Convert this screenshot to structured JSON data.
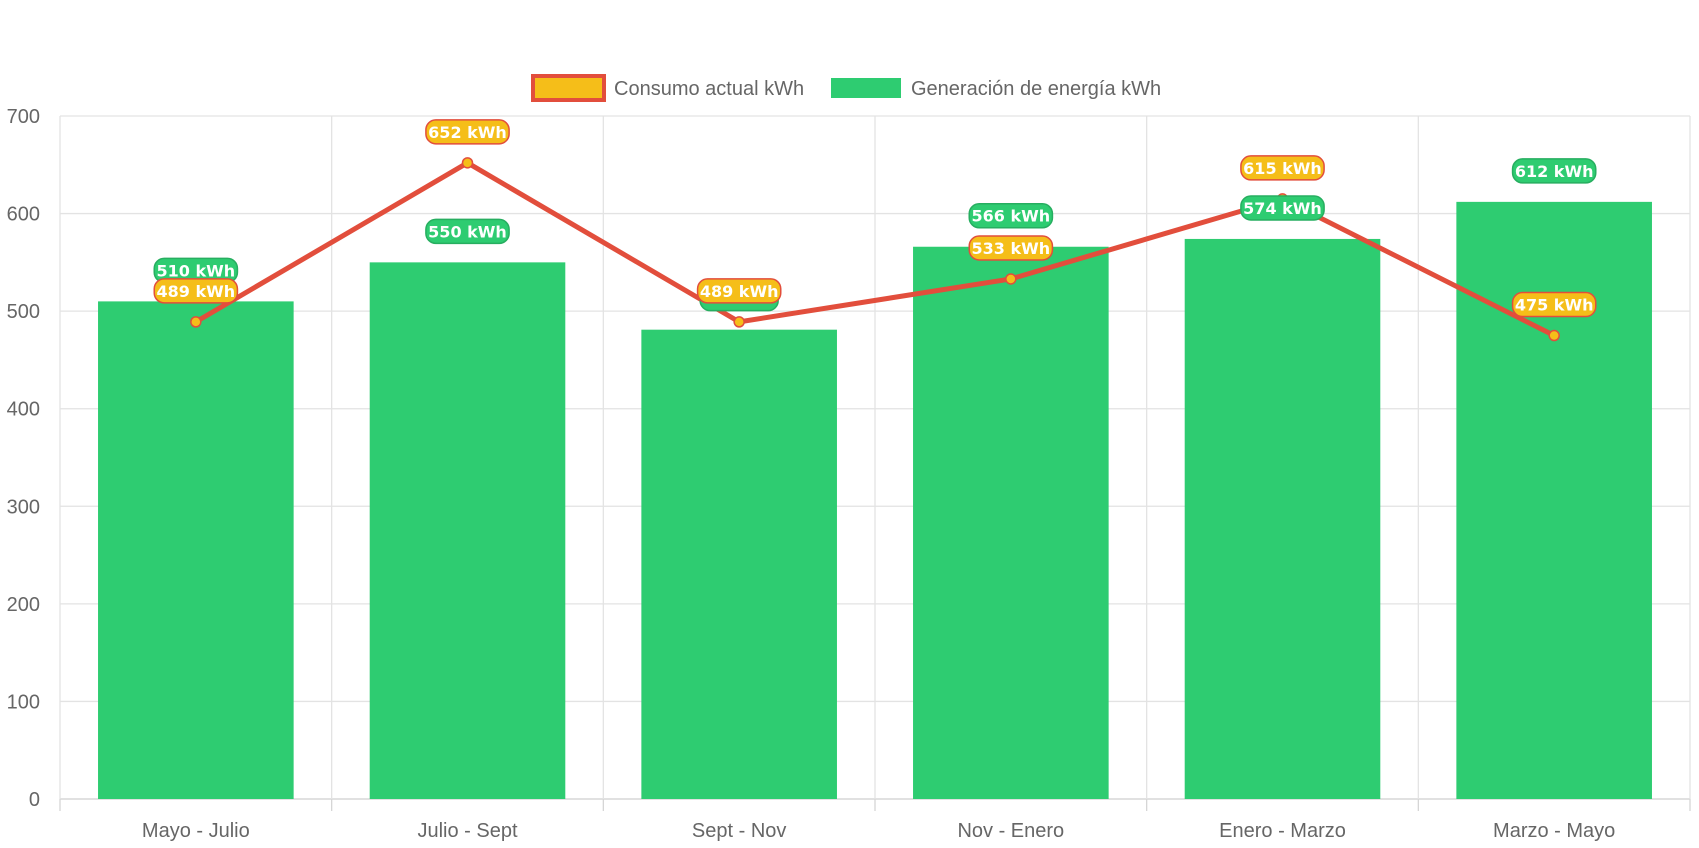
{
  "chart_data": {
    "type": "bar",
    "categories": [
      "Mayo - Julio",
      "Julio - Sept",
      "Sept - Nov",
      "Nov - Enero",
      "Enero - Marzo",
      "Marzo - Mayo"
    ],
    "series": [
      {
        "name": "Consumo actual kWh",
        "type": "line",
        "values": [
          489,
          652,
          489,
          533,
          615,
          475
        ],
        "data_labels": [
          "489 kWh",
          "652 kWh",
          "489 kWh",
          "533 kWh",
          "615 kWh",
          "475 kWh"
        ],
        "color": "#e24e3c",
        "fill_color": "#f5be19"
      },
      {
        "name": "Generación de energía kWh",
        "type": "bar",
        "values": [
          510,
          550,
          481,
          566,
          574,
          612
        ],
        "data_labels": [
          "510 kWh",
          "550 kWh",
          "",
          "566 kWh",
          "574 kWh",
          "612 kWh"
        ],
        "color": "#2ecc71"
      }
    ],
    "ylim": [
      0,
      700
    ],
    "yticks": [
      0,
      100,
      200,
      300,
      400,
      500,
      600,
      700
    ],
    "grid": true,
    "legend": "top-center"
  }
}
